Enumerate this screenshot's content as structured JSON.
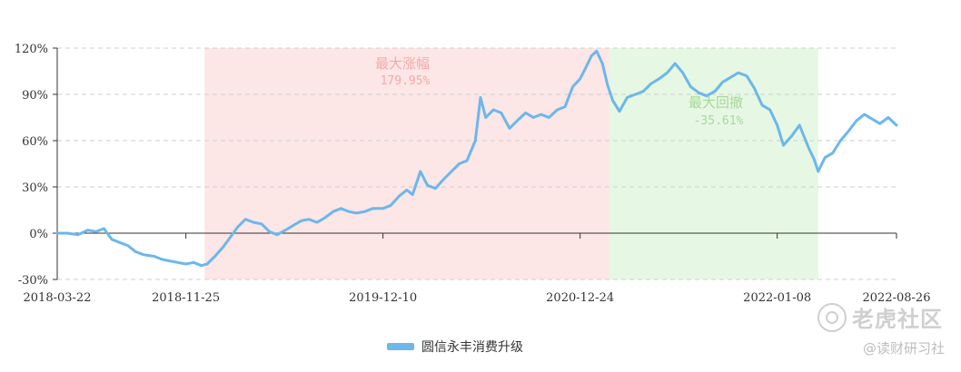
{
  "chart_data": {
    "type": "line",
    "y_ticks": [
      "120%",
      "90%",
      "60%",
      "30%",
      "0%",
      "-30%"
    ],
    "x_ticks": [
      "2018-03-22",
      "2018-11-25",
      "2019-12-10",
      "2020-12-24",
      "2022-01-08",
      "2022-08-26"
    ],
    "x_range": [
      "2018-03-22",
      "2022-08-26"
    ],
    "ylim": [
      -30,
      120
    ],
    "grid": true,
    "legend_position": "bottom-center",
    "series": [
      {
        "name": "圆信永丰消费升级",
        "color": "#6cb7eb",
        "points": [
          [
            "2018-03-22",
            0
          ],
          [
            "2018-04-10",
            0
          ],
          [
            "2018-05-01",
            -1
          ],
          [
            "2018-05-20",
            2
          ],
          [
            "2018-06-05",
            1
          ],
          [
            "2018-06-20",
            3
          ],
          [
            "2018-07-05",
            -4
          ],
          [
            "2018-07-20",
            -6
          ],
          [
            "2018-08-05",
            -8
          ],
          [
            "2018-08-20",
            -12
          ],
          [
            "2018-09-05",
            -14
          ],
          [
            "2018-09-25",
            -15
          ],
          [
            "2018-10-10",
            -17
          ],
          [
            "2018-10-25",
            -18
          ],
          [
            "2018-11-10",
            -19
          ],
          [
            "2018-11-25",
            -20
          ],
          [
            "2018-12-10",
            -19
          ],
          [
            "2018-12-25",
            -21
          ],
          [
            "2019-01-05",
            -20
          ],
          [
            "2019-01-20",
            -15
          ],
          [
            "2019-02-05",
            -9
          ],
          [
            "2019-02-20",
            -2
          ],
          [
            "2019-03-05",
            4
          ],
          [
            "2019-03-20",
            9
          ],
          [
            "2019-04-05",
            7
          ],
          [
            "2019-04-20",
            6
          ],
          [
            "2019-05-05",
            1
          ],
          [
            "2019-05-20",
            -1
          ],
          [
            "2019-06-05",
            2
          ],
          [
            "2019-06-20",
            5
          ],
          [
            "2019-07-05",
            8
          ],
          [
            "2019-07-20",
            9
          ],
          [
            "2019-08-05",
            7
          ],
          [
            "2019-08-20",
            10
          ],
          [
            "2019-09-05",
            14
          ],
          [
            "2019-09-20",
            16
          ],
          [
            "2019-10-05",
            14
          ],
          [
            "2019-10-20",
            13
          ],
          [
            "2019-11-05",
            14
          ],
          [
            "2019-11-20",
            16
          ],
          [
            "2019-12-10",
            16
          ],
          [
            "2019-12-25",
            18
          ],
          [
            "2020-01-10",
            24
          ],
          [
            "2020-01-25",
            28
          ],
          [
            "2020-02-05",
            25
          ],
          [
            "2020-02-20",
            40
          ],
          [
            "2020-03-05",
            31
          ],
          [
            "2020-03-20",
            29
          ],
          [
            "2020-04-05",
            35
          ],
          [
            "2020-04-20",
            40
          ],
          [
            "2020-05-05",
            45
          ],
          [
            "2020-05-20",
            47
          ],
          [
            "2020-06-05",
            60
          ],
          [
            "2020-06-15",
            88
          ],
          [
            "2020-06-25",
            75
          ],
          [
            "2020-07-10",
            80
          ],
          [
            "2020-07-25",
            78
          ],
          [
            "2020-08-10",
            68
          ],
          [
            "2020-08-25",
            73
          ],
          [
            "2020-09-10",
            78
          ],
          [
            "2020-09-25",
            75
          ],
          [
            "2020-10-10",
            77
          ],
          [
            "2020-10-25",
            75
          ],
          [
            "2020-11-10",
            80
          ],
          [
            "2020-11-25",
            82
          ],
          [
            "2020-12-10",
            95
          ],
          [
            "2020-12-24",
            100
          ],
          [
            "2021-01-05",
            108
          ],
          [
            "2021-01-15",
            115
          ],
          [
            "2021-01-25",
            118
          ],
          [
            "2021-02-05",
            110
          ],
          [
            "2021-02-15",
            96
          ],
          [
            "2021-02-25",
            86
          ],
          [
            "2021-03-10",
            79
          ],
          [
            "2021-03-25",
            88
          ],
          [
            "2021-04-10",
            90
          ],
          [
            "2021-04-25",
            92
          ],
          [
            "2021-05-10",
            97
          ],
          [
            "2021-05-25",
            100
          ],
          [
            "2021-06-10",
            104
          ],
          [
            "2021-06-25",
            110
          ],
          [
            "2021-07-10",
            104
          ],
          [
            "2021-07-25",
            95
          ],
          [
            "2021-08-10",
            91
          ],
          [
            "2021-08-25",
            89
          ],
          [
            "2021-09-10",
            92
          ],
          [
            "2021-09-25",
            98
          ],
          [
            "2021-10-10",
            101
          ],
          [
            "2021-10-25",
            104
          ],
          [
            "2021-11-10",
            102
          ],
          [
            "2021-11-25",
            94
          ],
          [
            "2021-12-10",
            83
          ],
          [
            "2021-12-25",
            80
          ],
          [
            "2022-01-08",
            70
          ],
          [
            "2022-01-20",
            57
          ],
          [
            "2022-02-05",
            63
          ],
          [
            "2022-02-20",
            70
          ],
          [
            "2022-03-10",
            55
          ],
          [
            "2022-03-20",
            48
          ],
          [
            "2022-03-28",
            40
          ],
          [
            "2022-04-10",
            49
          ],
          [
            "2022-04-25",
            52
          ],
          [
            "2022-05-10",
            60
          ],
          [
            "2022-05-25",
            66
          ],
          [
            "2022-06-10",
            73
          ],
          [
            "2022-06-25",
            77
          ],
          [
            "2022-07-10",
            74
          ],
          [
            "2022-07-25",
            71
          ],
          [
            "2022-08-10",
            75
          ],
          [
            "2022-08-26",
            70
          ]
        ]
      }
    ],
    "annotations": [
      {
        "label": "最大涨幅",
        "value": "179.95%",
        "start": "2018-12-31",
        "end": "2021-02-18",
        "fill": "#fde6e6",
        "text_color": "#f4a9a9"
      },
      {
        "label": "最大回撤",
        "value": "-35.61%",
        "start": "2021-02-18",
        "end": "2022-03-28",
        "fill": "#e6f7e3",
        "text_color": "#a8d89a"
      }
    ]
  },
  "legend": {
    "label": "圆信永丰消费升级",
    "color": "#6cb7eb"
  },
  "watermark": {
    "brand": "老虎社区",
    "sub": "@读财研习社"
  }
}
